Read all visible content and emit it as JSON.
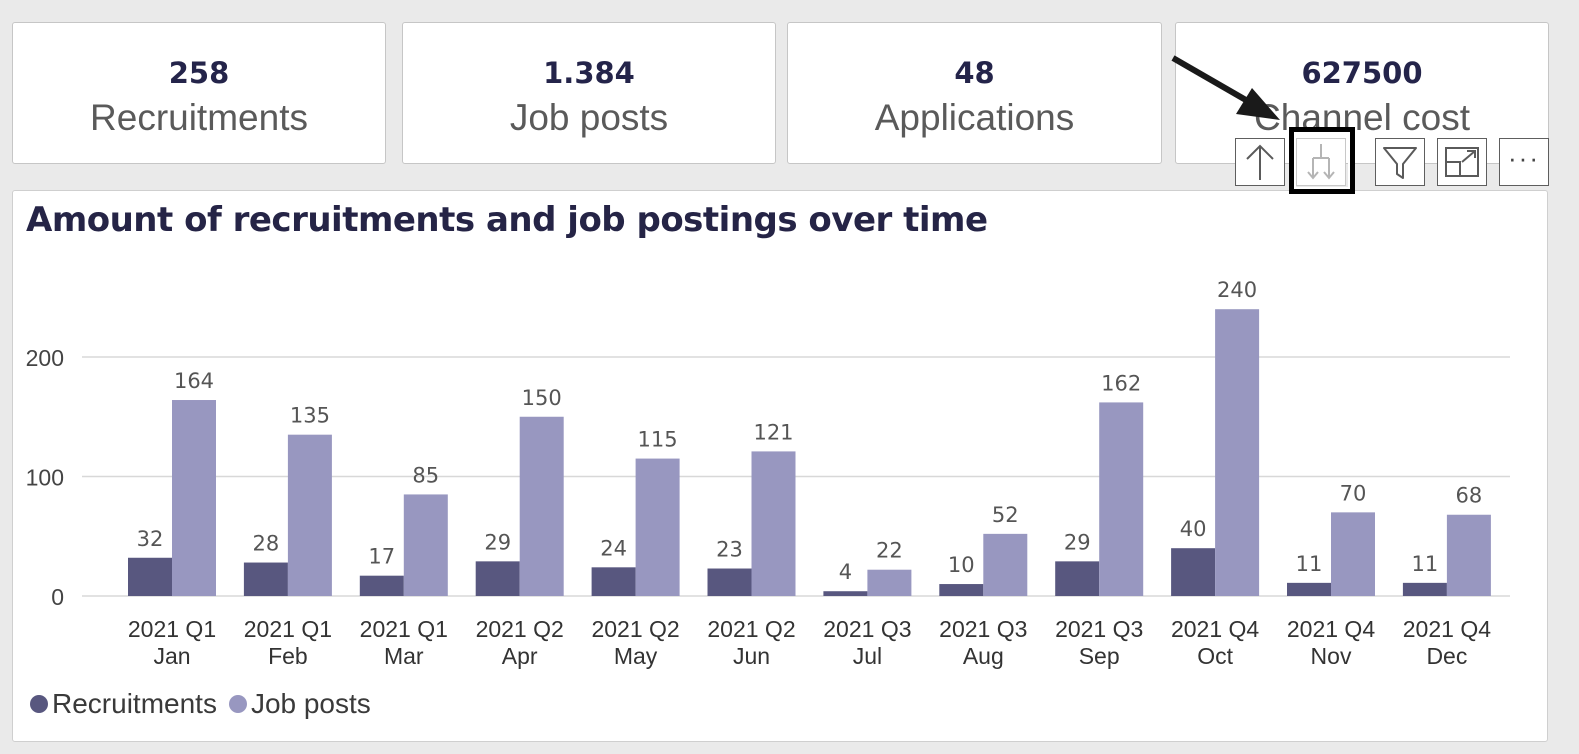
{
  "kpis": [
    {
      "value": "258",
      "label": "Recruitments"
    },
    {
      "value": "1.384",
      "label": "Job posts"
    },
    {
      "value": "48",
      "label": "Applications"
    },
    {
      "value": "627500",
      "label": "Channel cost"
    }
  ],
  "toolbar": {
    "icons": [
      "drill-up-icon",
      "expand-hierarchy-icon",
      "filter-icon",
      "focus-mode-icon",
      "more-options-icon"
    ],
    "more_label": "···"
  },
  "colors": {
    "recruitments": "#58577f",
    "job_posts": "#9897c0",
    "gridline": "#d8d8d8",
    "title": "#252446"
  },
  "chart_data": {
    "type": "bar",
    "title": "Amount of recruitments and job postings over time",
    "categories": [
      [
        "2021 Q1",
        "Jan"
      ],
      [
        "2021 Q1",
        "Feb"
      ],
      [
        "2021 Q1",
        "Mar"
      ],
      [
        "2021 Q2",
        "Apr"
      ],
      [
        "2021 Q2",
        "May"
      ],
      [
        "2021 Q2",
        "Jun"
      ],
      [
        "2021 Q3",
        "Jul"
      ],
      [
        "2021 Q3",
        "Aug"
      ],
      [
        "2021 Q3",
        "Sep"
      ],
      [
        "2021 Q4",
        "Oct"
      ],
      [
        "2021 Q4",
        "Nov"
      ],
      [
        "2021 Q4",
        "Dec"
      ]
    ],
    "series": [
      {
        "name": "Recruitments",
        "values": [
          32,
          28,
          17,
          29,
          24,
          23,
          4,
          10,
          29,
          40,
          11,
          11
        ]
      },
      {
        "name": "Job posts",
        "values": [
          164,
          135,
          85,
          150,
          115,
          121,
          22,
          52,
          162,
          240,
          70,
          68
        ]
      }
    ],
    "yticks": [
      0,
      100,
      200
    ],
    "ylim": [
      0,
      240
    ],
    "grid": true,
    "legend_position": "bottom-left"
  }
}
